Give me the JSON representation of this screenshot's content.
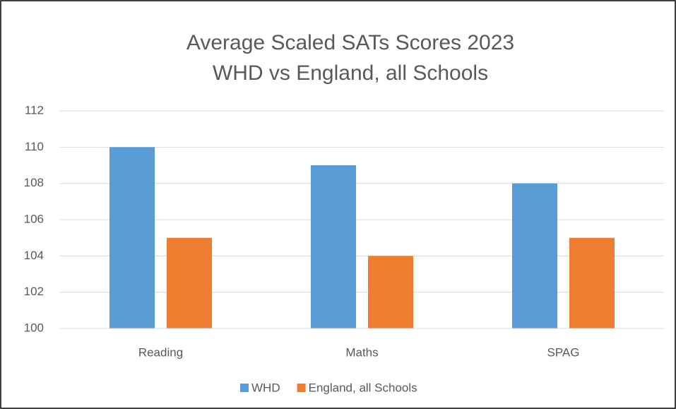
{
  "chart_data": {
    "type": "bar",
    "title": [
      "Average Scaled SATs Scores 2023",
      "WHD vs England, all Schools"
    ],
    "categories": [
      "Reading",
      "Maths",
      "SPAG"
    ],
    "series": [
      {
        "name": "WHD",
        "color": "#5b9bd5",
        "values": [
          110,
          109,
          108
        ]
      },
      {
        "name": "England, all Schools",
        "color": "#ed7d31",
        "values": [
          105,
          104,
          105
        ]
      }
    ],
    "ylim": [
      100,
      112
    ],
    "yticks": [
      100,
      102,
      104,
      106,
      108,
      110,
      112
    ],
    "grid": true,
    "legend": "bottom"
  }
}
